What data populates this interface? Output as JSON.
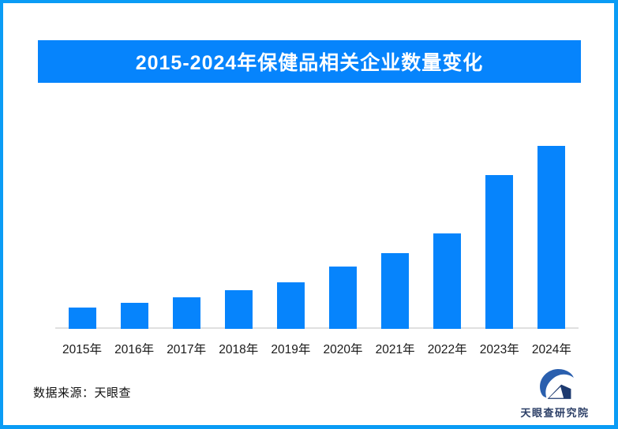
{
  "page": {
    "title_banner": "2015-2024年保健品相关企业数量变化",
    "source_note": "数据来源：天眼查",
    "logo_text": "天眼查研究院"
  },
  "colors": {
    "frame_border": "#0a9cf5",
    "banner_bg": "#0684fc",
    "bar_fill": "#0684fc",
    "axis_line": "#e0e0e0",
    "tick_text": "#1a1a1a",
    "logo_blue": "#2a5fae",
    "logo_navy": "#1d3a70",
    "logo_text_color": "#2b3e66"
  },
  "chart_data": {
    "type": "bar",
    "title": "2015-2024年保健品相关企业数量变化",
    "categories": [
      "2015年",
      "2016年",
      "2017年",
      "2018年",
      "2019年",
      "2020年",
      "2021年",
      "2022年",
      "2023年",
      "2024年"
    ],
    "values": [
      27,
      33,
      40,
      49,
      59,
      79,
      96,
      121,
      195,
      232
    ],
    "value_unit": "relative height (no y-axis or data labels shown in source image)",
    "xlabel": "",
    "ylabel": "",
    "ylim": [
      0,
      240
    ],
    "grid": false,
    "legend": false,
    "bar_color": "#0684fc"
  }
}
